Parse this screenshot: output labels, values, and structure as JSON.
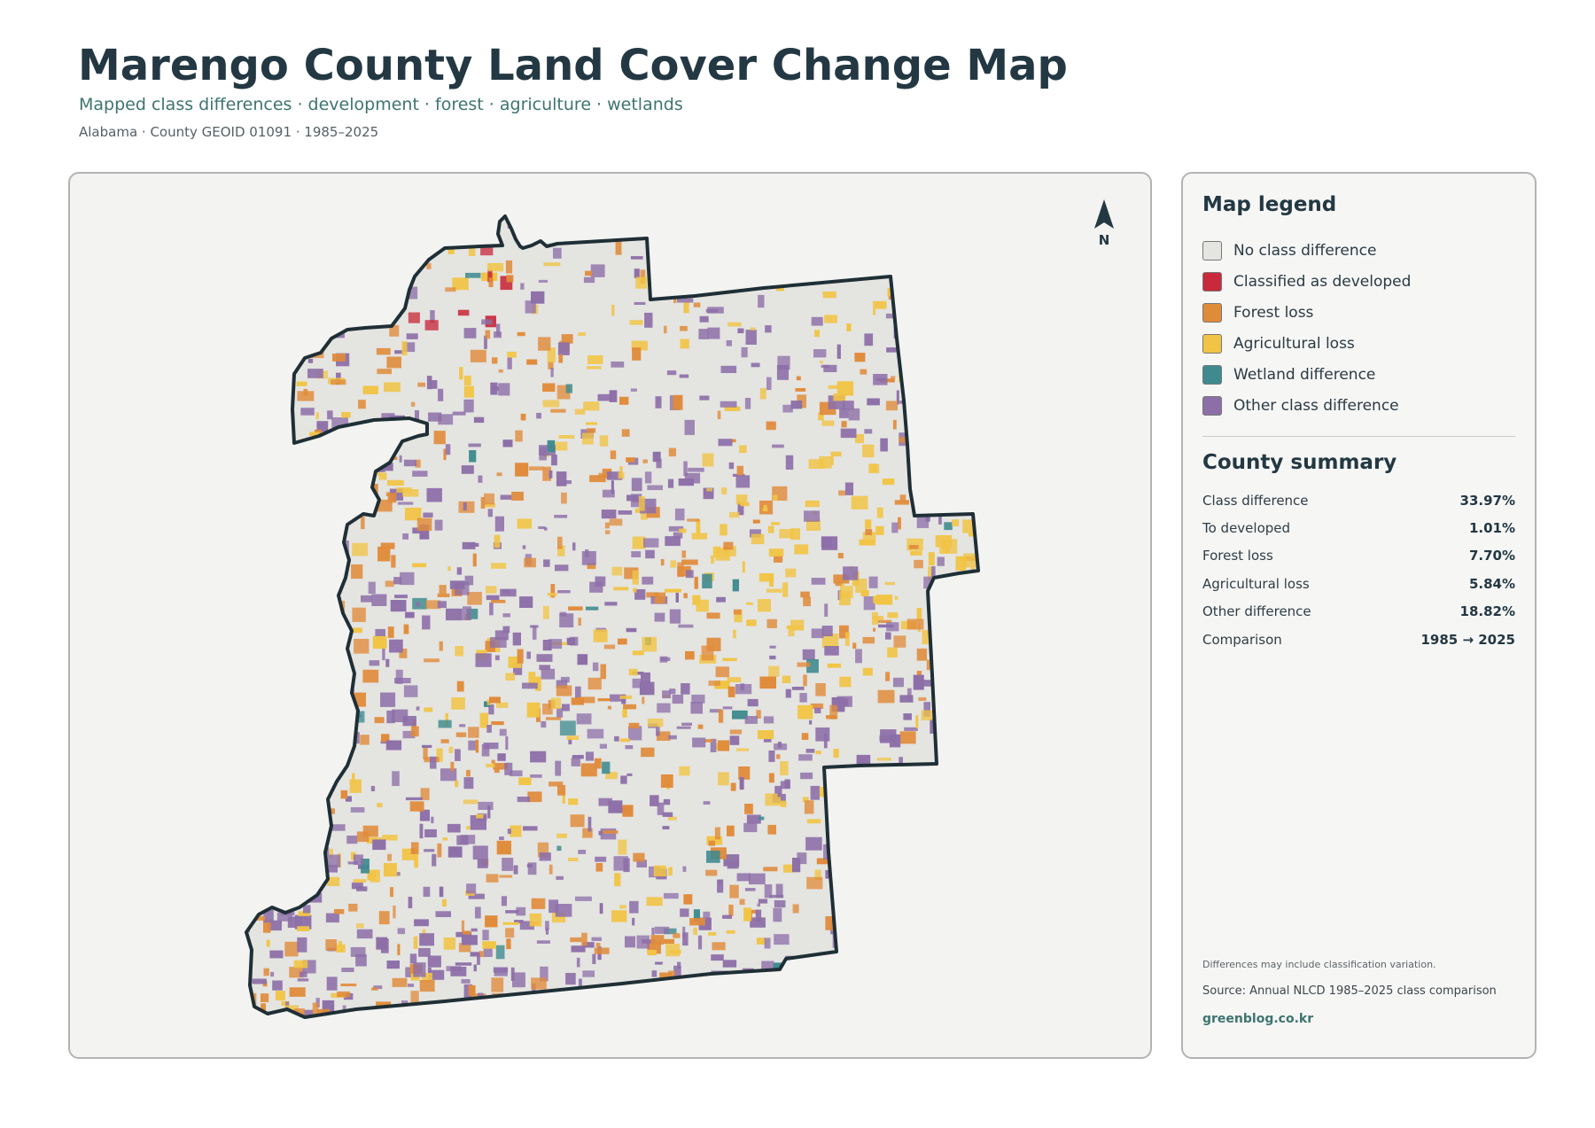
{
  "header": {
    "title": "Marengo County Land Cover Change Map",
    "subtitle": "Mapped class differences · development · forest · agriculture · wetlands",
    "meta": "Alabama · County GEOID 01091 · 1985–2025"
  },
  "map": {
    "north_label": "N",
    "boundary_color": "#1f2f36",
    "background_color": "#e4e4e1"
  },
  "legend": {
    "heading": "Map legend",
    "items": [
      {
        "label": "No class difference",
        "color": "#e4e4e1"
      },
      {
        "label": "Classified as developed",
        "color": "#c9293b"
      },
      {
        "label": "Forest loss",
        "color": "#e08b3a"
      },
      {
        "label": "Agricultural loss",
        "color": "#f1c445"
      },
      {
        "label": "Wetland difference",
        "color": "#3e8a8e"
      },
      {
        "label": "Other class difference",
        "color": "#8d6fa8"
      }
    ]
  },
  "summary": {
    "heading": "County summary",
    "rows": [
      {
        "label": "Class difference",
        "value": "33.97%"
      },
      {
        "label": "To developed",
        "value": "1.01%"
      },
      {
        "label": "Forest loss",
        "value": "7.70%"
      },
      {
        "label": "Agricultural loss",
        "value": "5.84%"
      },
      {
        "label": "Other difference",
        "value": "18.82%"
      },
      {
        "label": "Comparison",
        "value": "1985 → 2025"
      }
    ]
  },
  "footer": {
    "note": "Differences may include classification variation.",
    "source": "Source: Annual NLCD 1985–2025 class comparison",
    "site": "greenblog.co.kr"
  }
}
